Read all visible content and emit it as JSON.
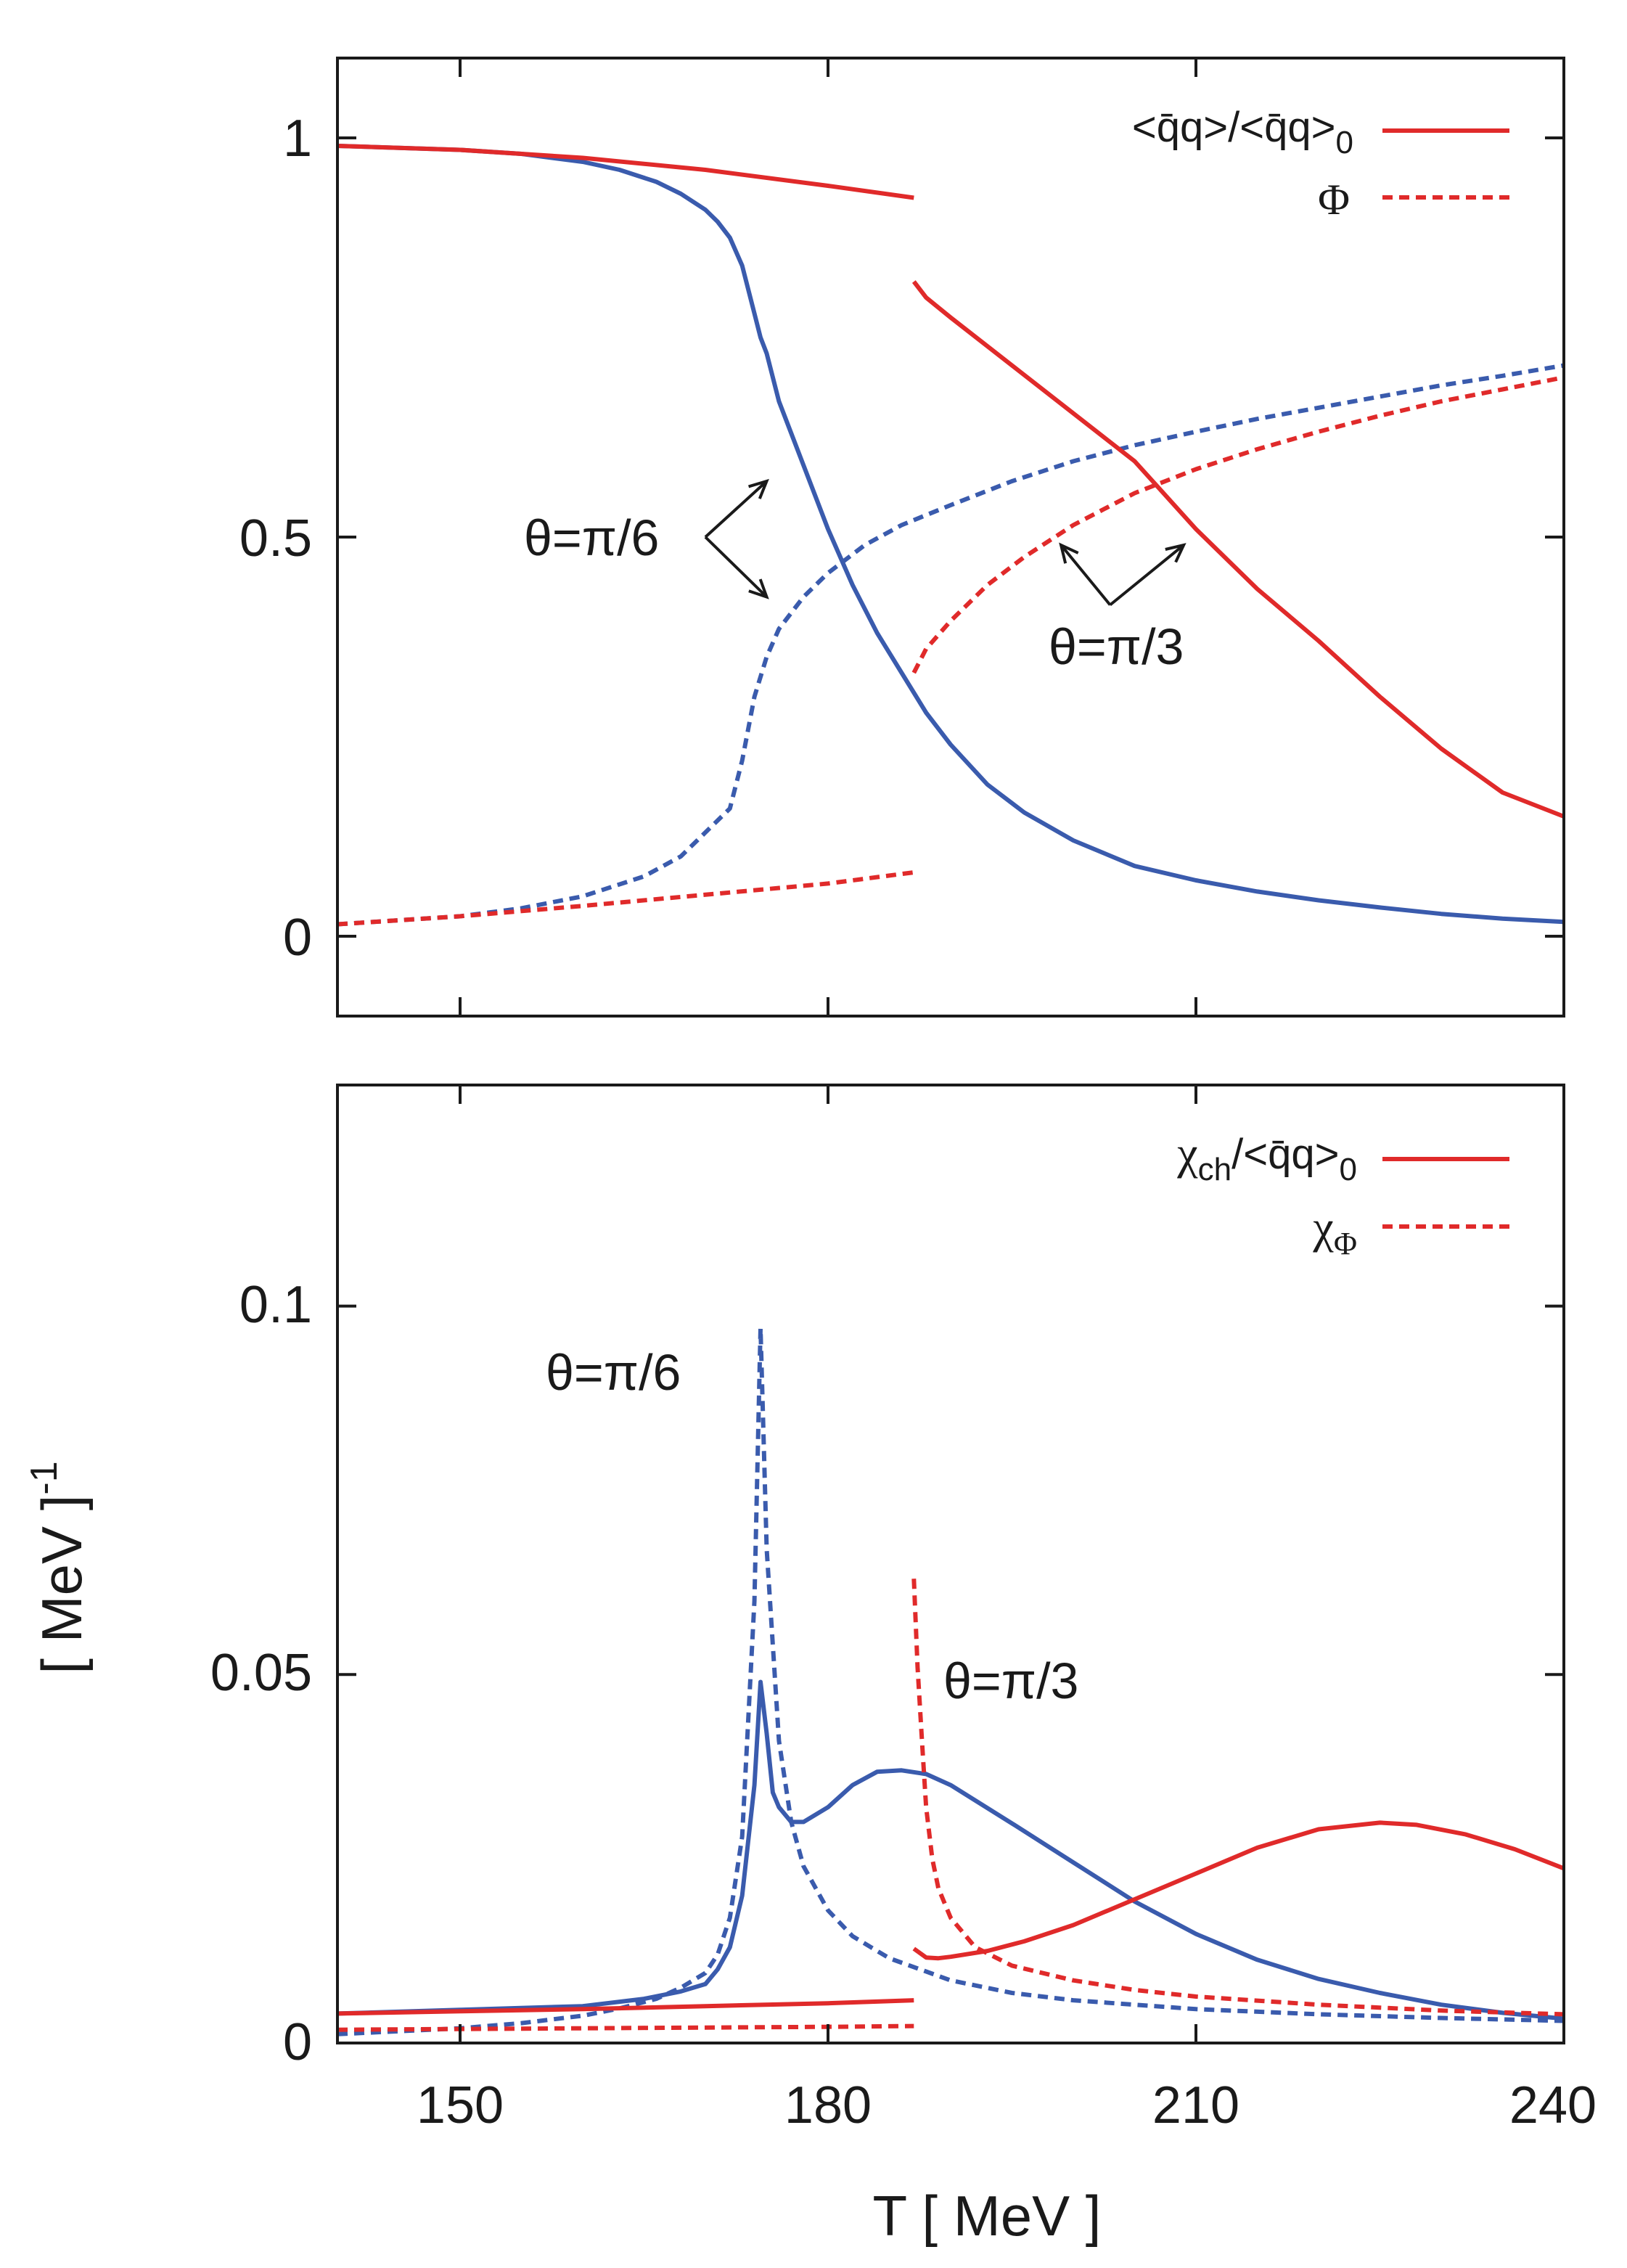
{
  "colors": {
    "theta_pi6": "#3a5bad",
    "theta_pi3": "#e02a2a",
    "axis": "#1a1a1a"
  },
  "chart_data": [
    {
      "type": "line",
      "panel": "top",
      "xlabel": "",
      "ylabel": "",
      "xlim": [
        140,
        240
      ],
      "ylim": [
        -0.1,
        1.1
      ],
      "yticks": [
        0,
        0.5,
        1
      ],
      "ytick_labels": [
        "0",
        "0.5",
        "1"
      ],
      "xticks": [
        150,
        180,
        210,
        240
      ],
      "legend": {
        "placement": "top-right",
        "entries": [
          {
            "label": "<q̄q>/<q̄q>",
            "subscript": "0",
            "style": "solid"
          },
          {
            "label": "Φ",
            "subscript": "",
            "style": "dashed"
          }
        ]
      },
      "annotations": [
        {
          "text": "θ=π/6",
          "x": 167,
          "y": 0.49
        },
        {
          "text": "θ=π/3",
          "x": 205,
          "y": 0.35
        }
      ],
      "series": [
        {
          "name": "<q̄q>/<q̄q>0 θ=π/6",
          "style": "solid",
          "color_key": "theta_pi6",
          "x": [
            140,
            150,
            155,
            160,
            163,
            166,
            168,
            170,
            171,
            172,
            173,
            174,
            174.5,
            175,
            176,
            177,
            178,
            180,
            182,
            184,
            186,
            188,
            190,
            193,
            196,
            200,
            205,
            210,
            215,
            220,
            225,
            230,
            235,
            240
          ],
          "y": [
            0.99,
            0.985,
            0.98,
            0.97,
            0.96,
            0.945,
            0.93,
            0.91,
            0.895,
            0.875,
            0.84,
            0.78,
            0.75,
            0.73,
            0.67,
            0.63,
            0.59,
            0.51,
            0.44,
            0.38,
            0.33,
            0.28,
            0.24,
            0.19,
            0.155,
            0.12,
            0.088,
            0.07,
            0.056,
            0.045,
            0.036,
            0.028,
            0.022,
            0.018
          ]
        },
        {
          "name": "Φ θ=π/6",
          "style": "dashed",
          "color_key": "theta_pi6",
          "x": [
            140,
            150,
            155,
            160,
            165,
            168,
            170,
            172,
            173,
            174,
            175,
            176,
            178,
            180,
            183,
            186,
            190,
            195,
            200,
            205,
            210,
            215,
            220,
            225,
            230,
            235,
            240
          ],
          "y": [
            0.015,
            0.025,
            0.035,
            0.05,
            0.075,
            0.1,
            0.13,
            0.16,
            0.22,
            0.3,
            0.35,
            0.385,
            0.425,
            0.455,
            0.49,
            0.515,
            0.54,
            0.57,
            0.595,
            0.615,
            0.632,
            0.648,
            0.662,
            0.676,
            0.69,
            0.702,
            0.715
          ]
        },
        {
          "name": "<q̄q>/<q̄q>0 θ=π/3",
          "style": "solid",
          "color_key": "theta_pi3",
          "segments": [
            {
              "x": [
                140,
                150,
                160,
                170,
                180,
                187
              ],
              "y": [
                0.99,
                0.985,
                0.975,
                0.96,
                0.94,
                0.925
              ]
            },
            {
              "x": [
                187,
                188,
                190,
                195,
                200,
                205,
                210,
                215,
                220,
                225,
                230,
                235,
                240
              ],
              "y": [
                0.82,
                0.8,
                0.775,
                0.715,
                0.655,
                0.595,
                0.51,
                0.435,
                0.37,
                0.3,
                0.235,
                0.18,
                0.15
              ]
            }
          ]
        },
        {
          "name": "Φ θ=π/3",
          "style": "dashed",
          "color_key": "theta_pi3",
          "segments": [
            {
              "x": [
                140,
                150,
                160,
                170,
                180,
                187
              ],
              "y": [
                0.015,
                0.025,
                0.038,
                0.052,
                0.066,
                0.08
              ]
            },
            {
              "x": [
                187,
                188,
                190,
                193,
                196,
                200,
                205,
                210,
                215,
                220,
                225,
                230,
                235,
                240
              ],
              "y": [
                0.33,
                0.36,
                0.395,
                0.44,
                0.475,
                0.515,
                0.555,
                0.585,
                0.61,
                0.632,
                0.652,
                0.67,
                0.685,
                0.7
              ]
            }
          ]
        }
      ],
      "arrows": [
        {
          "from": [
            170,
            0.5
          ],
          "to": [
            175,
            0.57
          ]
        },
        {
          "from": [
            170,
            0.5
          ],
          "to": [
            175,
            0.425
          ]
        },
        {
          "from": [
            203,
            0.415
          ],
          "to": [
            199,
            0.49
          ]
        },
        {
          "from": [
            203,
            0.415
          ],
          "to": [
            209,
            0.49
          ]
        }
      ]
    },
    {
      "type": "line",
      "panel": "bottom",
      "xlabel": "T  [ MeV ]",
      "ylabel": "[ MeV ]",
      "ylabel_exponent": "-1",
      "xlim": [
        140,
        240
      ],
      "ylim": [
        0,
        0.13
      ],
      "yticks": [
        0,
        0.05,
        0.1
      ],
      "ytick_labels": [
        "0",
        "0.05",
        "0.1"
      ],
      "xticks": [
        150,
        180,
        210,
        240
      ],
      "xtick_labels": [
        "150",
        "180",
        "210",
        "240"
      ],
      "legend": {
        "placement": "top-right",
        "entries": [
          {
            "label": "χ",
            "subscript": "ch",
            "suffix": "/<q̄q>",
            "suffix_subscript": "0",
            "style": "solid"
          },
          {
            "label": "χ",
            "subscript": "Φ",
            "suffix": "",
            "suffix_subscript": "",
            "style": "dashed"
          }
        ]
      },
      "annotations": [
        {
          "text": "θ=π/6",
          "x": 147,
          "y": 0.088
        },
        {
          "text": "θ=π/3",
          "x": 190,
          "y": 0.046
        }
      ],
      "series": [
        {
          "name": "χ_ch θ=π/6",
          "style": "solid",
          "color_key": "theta_pi6",
          "x": [
            140,
            150,
            160,
            165,
            168,
            170,
            171,
            172,
            173,
            174,
            174.5,
            175,
            175.5,
            176,
            177,
            178,
            180,
            182,
            184,
            186,
            188,
            190,
            195,
            200,
            205,
            210,
            215,
            220,
            225,
            230,
            235,
            240
          ],
          "y": [
            0.004,
            0.0045,
            0.005,
            0.006,
            0.007,
            0.008,
            0.01,
            0.013,
            0.02,
            0.035,
            0.049,
            0.042,
            0.034,
            0.032,
            0.03,
            0.03,
            0.032,
            0.035,
            0.0368,
            0.037,
            0.0365,
            0.035,
            0.0298,
            0.0245,
            0.0192,
            0.0148,
            0.0113,
            0.0087,
            0.0068,
            0.0052,
            0.0041,
            0.0033
          ]
        },
        {
          "name": "χ_Φ θ=π/6",
          "style": "dashed",
          "color_key": "theta_pi6",
          "x": [
            140,
            150,
            155,
            160,
            163,
            166,
            168,
            170,
            171,
            172,
            173,
            174,
            174.5,
            175,
            176,
            177,
            178,
            180,
            182,
            185,
            190,
            195,
            200,
            210,
            220,
            230,
            240
          ],
          "y": [
            0.0012,
            0.002,
            0.0027,
            0.0037,
            0.0047,
            0.006,
            0.0075,
            0.0095,
            0.012,
            0.017,
            0.028,
            0.06,
            0.097,
            0.067,
            0.041,
            0.03,
            0.024,
            0.018,
            0.0145,
            0.0115,
            0.0085,
            0.0068,
            0.0058,
            0.0046,
            0.0039,
            0.0034,
            0.003
          ]
        },
        {
          "name": "χ_ch θ=π/3",
          "style": "solid",
          "color_key": "theta_pi3",
          "segments": [
            {
              "x": [
                140,
                150,
                160,
                170,
                180,
                187
              ],
              "y": [
                0.004,
                0.0043,
                0.0046,
                0.005,
                0.0054,
                0.0058
              ]
            },
            {
              "x": [
                187,
                188,
                189,
                190,
                193,
                196,
                200,
                205,
                210,
                215,
                220,
                225,
                228,
                232,
                236,
                240
              ],
              "y": [
                0.0128,
                0.0116,
                0.0115,
                0.0117,
                0.0125,
                0.0138,
                0.016,
                0.0195,
                0.023,
                0.0265,
                0.029,
                0.0299,
                0.0296,
                0.0283,
                0.0263,
                0.0237
              ]
            }
          ]
        },
        {
          "name": "χ_Φ θ=π/3",
          "style": "dashed",
          "color_key": "theta_pi3",
          "segments": [
            {
              "x": [
                140,
                150,
                160,
                170,
                180,
                187
              ],
              "y": [
                0.0018,
                0.0019,
                0.002,
                0.0021,
                0.0022,
                0.0023
              ]
            },
            {
              "x": [
                187,
                187.3,
                187.7,
                188,
                188.5,
                189,
                190,
                192,
                195,
                200,
                205,
                210,
                220,
                230,
                240
              ],
              "y": [
                0.063,
                0.051,
                0.04,
                0.032,
                0.025,
                0.021,
                0.017,
                0.013,
                0.0105,
                0.0085,
                0.0072,
                0.0063,
                0.0052,
                0.0044,
                0.0039
              ]
            }
          ]
        }
      ]
    }
  ]
}
